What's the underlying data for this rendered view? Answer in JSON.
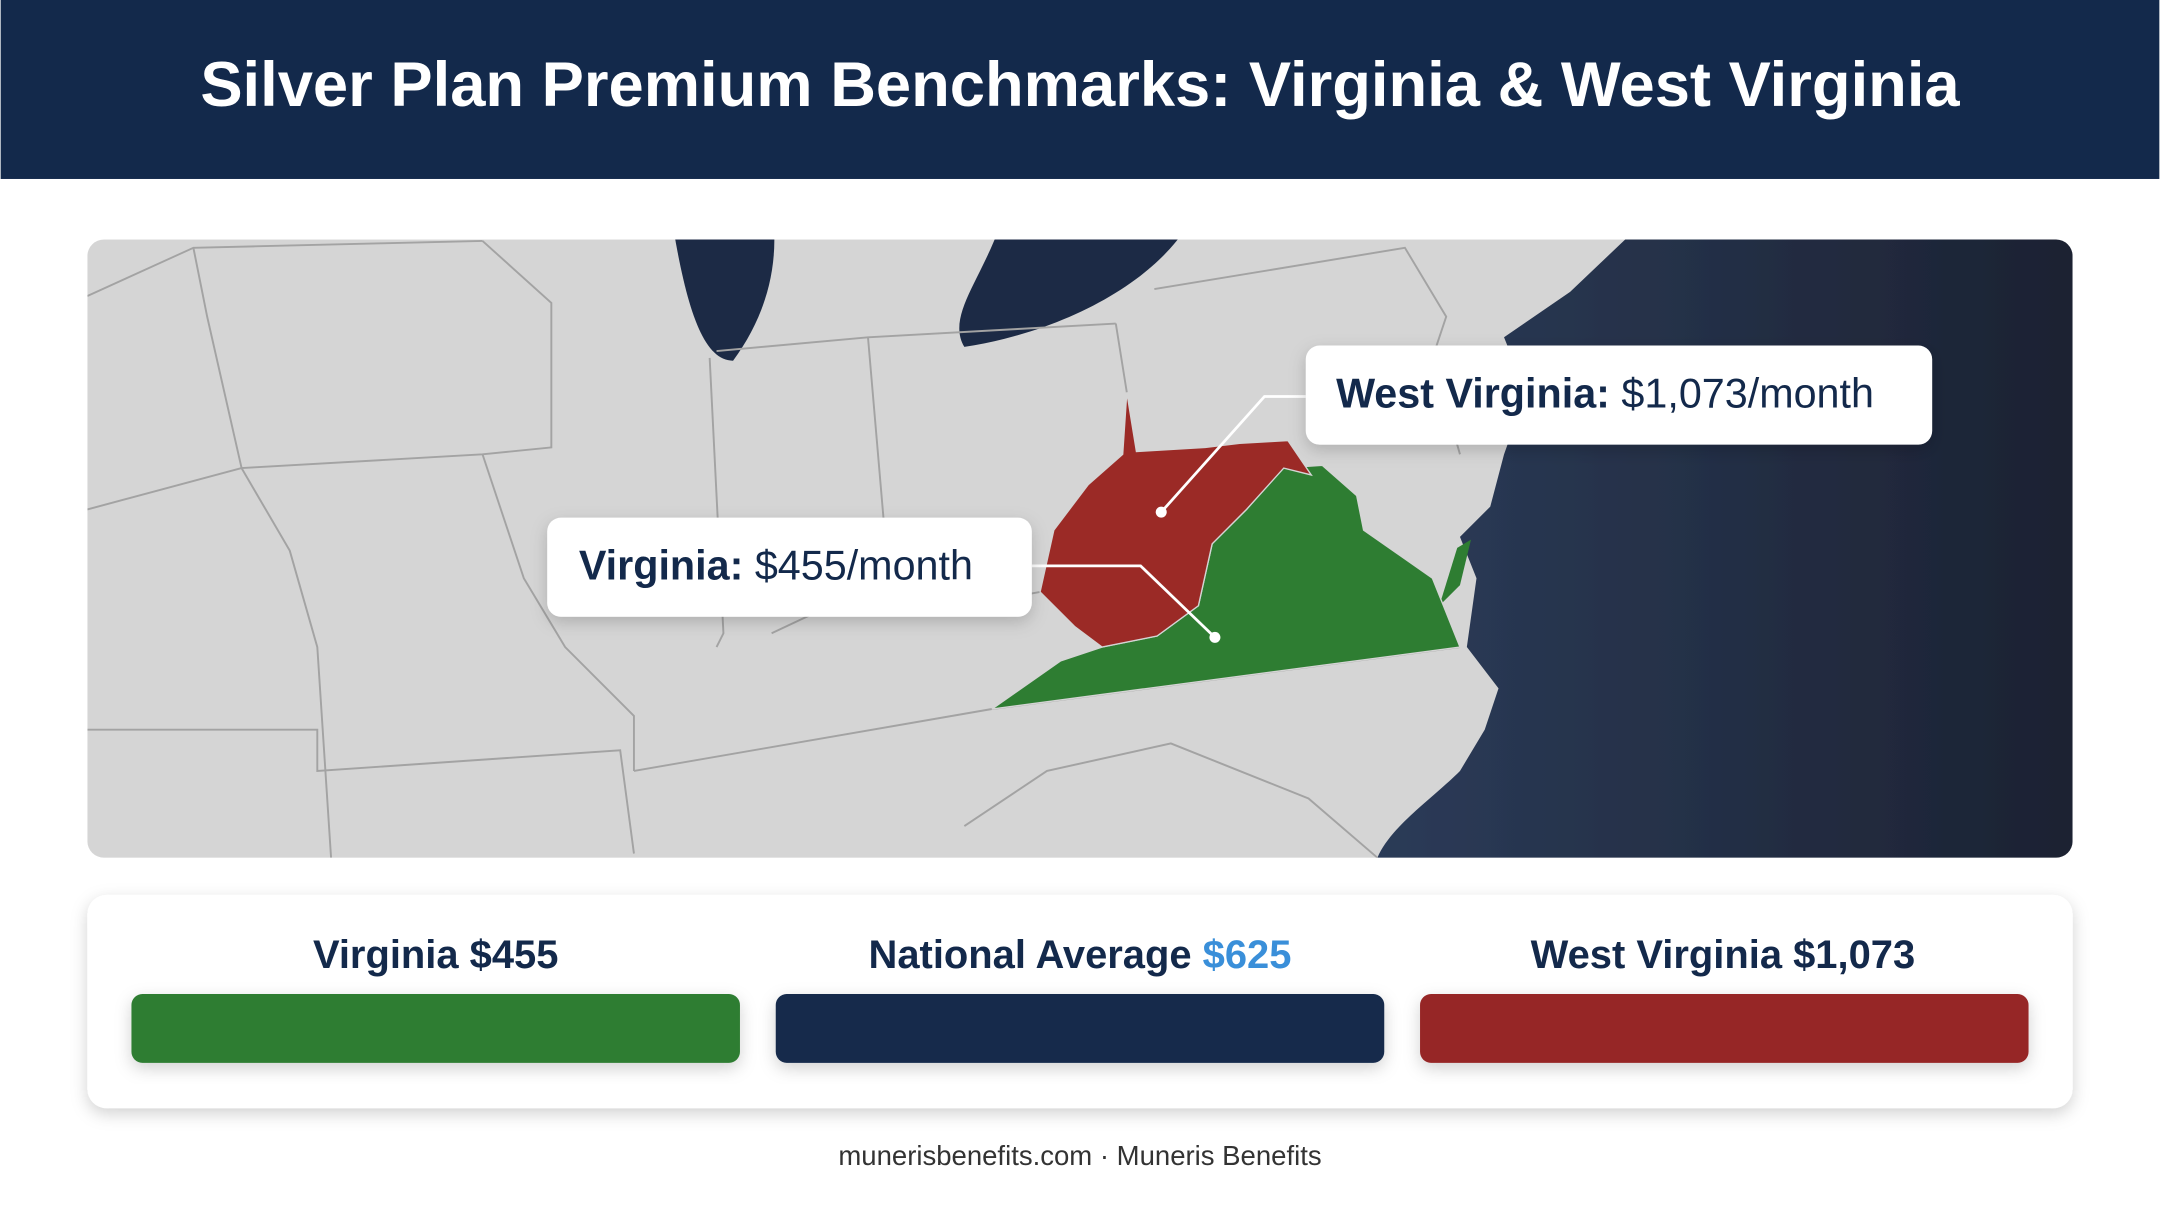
{
  "header": {
    "title": "Silver Plan Premium Benchmarks: Virginia & West Virginia"
  },
  "map": {
    "callouts": [
      {
        "label": "West Virginia:",
        "value": "$1,073/month"
      },
      {
        "label": "Virginia:",
        "value": "$455/month"
      }
    ]
  },
  "legend": [
    {
      "name": "Virginia",
      "value": "$455"
    },
    {
      "name": "National Average",
      "value": "$625"
    },
    {
      "name": "West Virginia",
      "value": "$1,073"
    }
  ],
  "footer": "munerisbenefits.com · Muneris Benefits"
}
